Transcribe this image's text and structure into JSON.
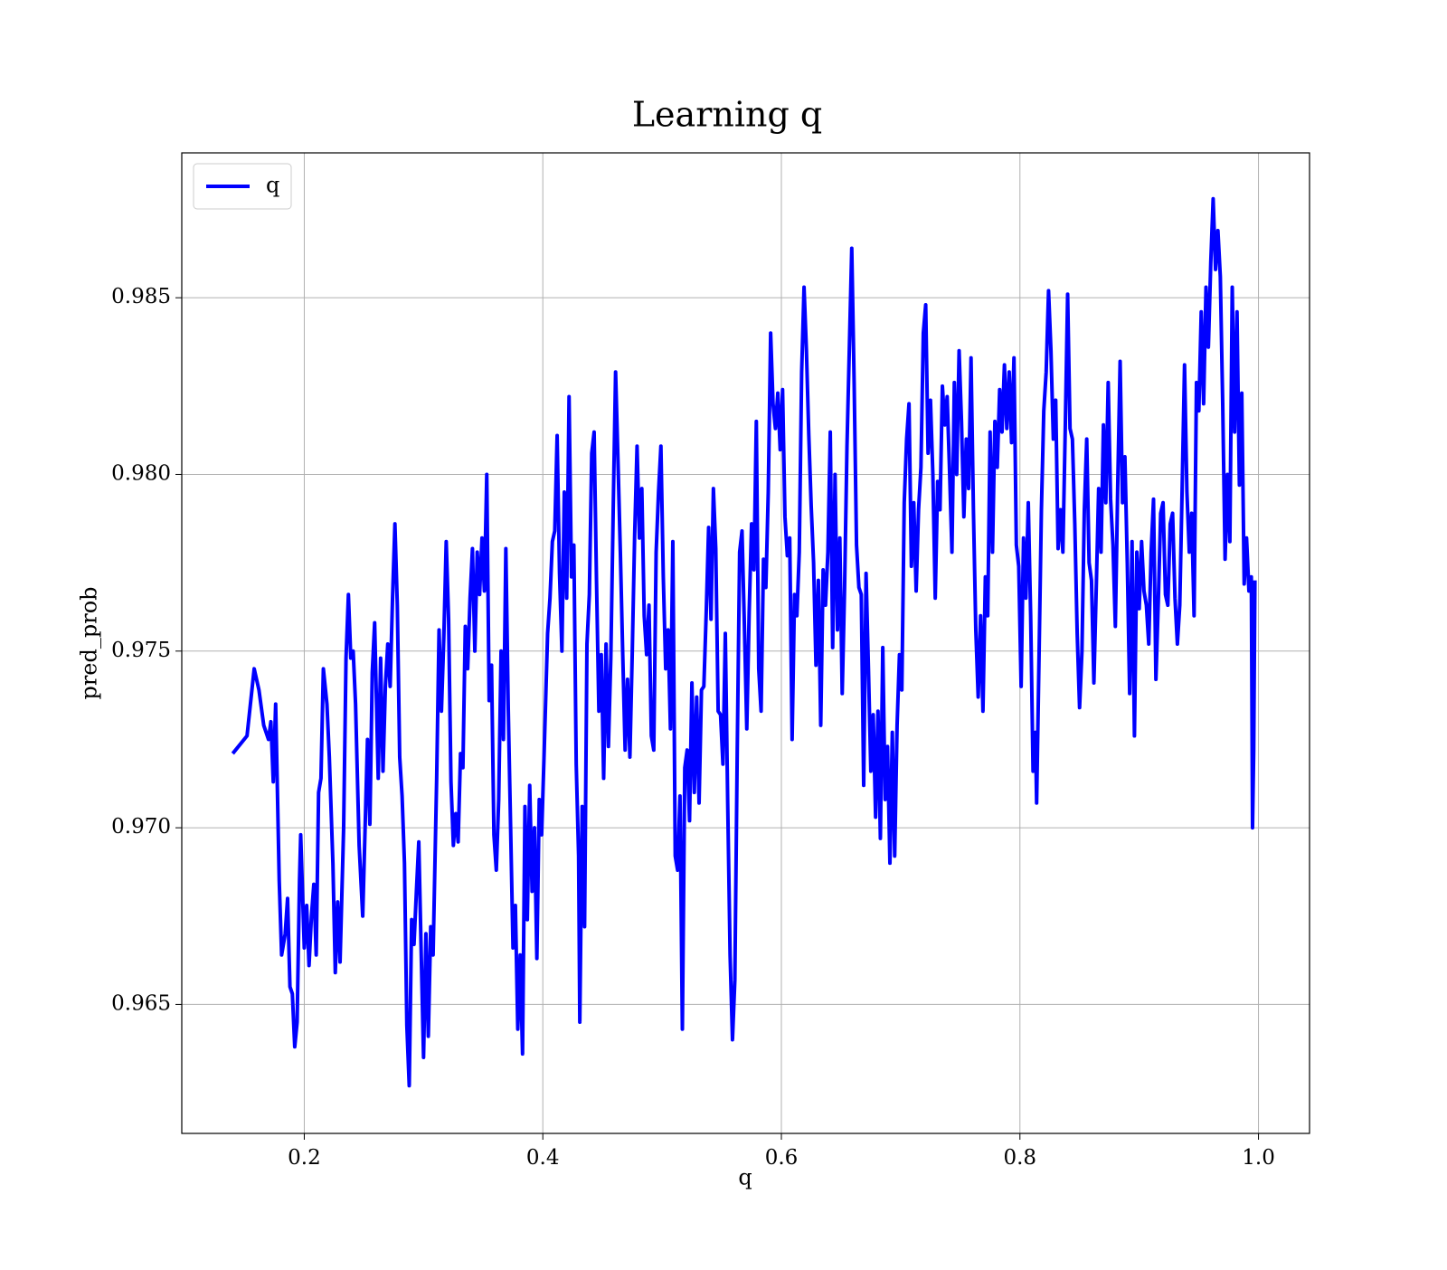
{
  "chart_data": {
    "type": "line",
    "title": "Learning q",
    "xlabel": "q",
    "ylabel": "pred_prob",
    "xlim": [
      0.0973,
      1.0428
    ],
    "ylim": [
      0.96135,
      0.9891
    ],
    "xticks": [
      0.2,
      0.4,
      0.6,
      0.8,
      {
        "value": 1,
        "label": "1.0"
      }
    ],
    "yticks": [
      0.965,
      {
        "value": 0.97,
        "label": "0.970"
      },
      0.975,
      {
        "value": 0.98,
        "label": "0.980"
      },
      0.985
    ],
    "grid": true,
    "legend": "upper left",
    "x": [
      0.14,
      0.152,
      0.158,
      0.162,
      0.166,
      0.17,
      0.172,
      0.174,
      0.176,
      0.179,
      0.181,
      0.184,
      0.186,
      0.188,
      0.19,
      0.192,
      0.194,
      0.196,
      0.197,
      0.2,
      0.202,
      0.204,
      0.206,
      0.208,
      0.21,
      0.212,
      0.214,
      0.216,
      0.219,
      0.221,
      0.224,
      0.226,
      0.228,
      0.23,
      0.233,
      0.235,
      0.237,
      0.239,
      0.241,
      0.243,
      0.246,
      0.249,
      0.251,
      0.253,
      0.255,
      0.257,
      0.259,
      0.262,
      0.264,
      0.266,
      0.268,
      0.27,
      0.272,
      0.274,
      0.276,
      0.278,
      0.28,
      0.282,
      0.284,
      0.286,
      0.288,
      0.29,
      0.292,
      0.294,
      0.296,
      0.298,
      0.3,
      0.302,
      0.304,
      0.306,
      0.308,
      0.311,
      0.313,
      0.315,
      0.317,
      0.319,
      0.321,
      0.323,
      0.325,
      0.327,
      0.329,
      0.331,
      0.333,
      0.335,
      0.337,
      0.339,
      0.341,
      0.343,
      0.345,
      0.347,
      0.349,
      0.351,
      0.353,
      0.355,
      0.357,
      0.359,
      0.361,
      0.363,
      0.365,
      0.367,
      0.369,
      0.371,
      0.373,
      0.375,
      0.377,
      0.379,
      0.381,
      0.383,
      0.385,
      0.387,
      0.389,
      0.391,
      0.393,
      0.395,
      0.397,
      0.399,
      0.401,
      0.404,
      0.406,
      0.408,
      0.41,
      0.412,
      0.414,
      0.416,
      0.418,
      0.42,
      0.422,
      0.424,
      0.426,
      0.428,
      0.43,
      0.431,
      0.433,
      0.435,
      0.437,
      0.439,
      0.441,
      0.443,
      0.445,
      0.447,
      0.449,
      0.451,
      0.453,
      0.455,
      0.457,
      0.459,
      0.461,
      0.463,
      0.465,
      0.467,
      0.469,
      0.471,
      0.473,
      0.475,
      0.477,
      0.479,
      0.481,
      0.483,
      0.485,
      0.487,
      0.489,
      0.491,
      0.493,
      0.495,
      0.497,
      0.499,
      0.501,
      0.503,
      0.505,
      0.507,
      0.509,
      0.511,
      0.513,
      0.515,
      0.517,
      0.519,
      0.521,
      0.523,
      0.525,
      0.527,
      0.529,
      0.531,
      0.533,
      0.535,
      0.537,
      0.539,
      0.541,
      0.543,
      0.545,
      0.547,
      0.549,
      0.551,
      0.553,
      0.555,
      0.557,
      0.559,
      0.561,
      0.563,
      0.565,
      0.567,
      0.569,
      0.571,
      0.573,
      0.575,
      0.577,
      0.579,
      0.581,
      0.583,
      0.585,
      0.587,
      0.589,
      0.591,
      0.593,
      0.595,
      0.597,
      0.599,
      0.601,
      0.603,
      0.605,
      0.607,
      0.609,
      0.611,
      0.613,
      0.615,
      0.617,
      0.619,
      0.621,
      0.623,
      0.625,
      0.627,
      0.629,
      0.631,
      0.633,
      0.635,
      0.637,
      0.639,
      0.641,
      0.643,
      0.645,
      0.647,
      0.649,
      0.651,
      0.653,
      0.655,
      0.657,
      0.659,
      0.661,
      0.663,
      0.665,
      0.667,
      0.669,
      0.671,
      0.673,
      0.675,
      0.677,
      0.679,
      0.681,
      0.683,
      0.685,
      0.687,
      0.689,
      0.691,
      0.693,
      0.695,
      0.697,
      0.699,
      0.701,
      0.703,
      0.705,
      0.707,
      0.709,
      0.711,
      0.713,
      0.715,
      0.717,
      0.719,
      0.721,
      0.723,
      0.725,
      0.727,
      0.729,
      0.731,
      0.733,
      0.735,
      0.737,
      0.739,
      0.741,
      0.743,
      0.745,
      0.747,
      0.749,
      0.751,
      0.753,
      0.755,
      0.757,
      0.759,
      0.761,
      0.763,
      0.765,
      0.767,
      0.769,
      0.771,
      0.773,
      0.775,
      0.777,
      0.779,
      0.781,
      0.783,
      0.785,
      0.787,
      0.789,
      0.791,
      0.793,
      0.795,
      0.797,
      0.799,
      0.801,
      0.803,
      0.805,
      0.807,
      0.809,
      0.811,
      0.813,
      0.814,
      0.816,
      0.818,
      0.82,
      0.822,
      0.824,
      0.826,
      0.828,
      0.83,
      0.832,
      0.834,
      0.836,
      0.838,
      0.84,
      0.842,
      0.844,
      0.846,
      0.848,
      0.85,
      0.852,
      0.854,
      0.856,
      0.858,
      0.86,
      0.862,
      0.864,
      0.866,
      0.868,
      0.87,
      0.872,
      0.874,
      0.876,
      0.878,
      0.88,
      0.882,
      0.884,
      0.886,
      0.888,
      0.89,
      0.892,
      0.894,
      0.896,
      0.898,
      0.9,
      0.902,
      0.904,
      0.906,
      0.908,
      0.91,
      0.912,
      0.914,
      0.916,
      0.918,
      0.92,
      0.922,
      0.924,
      0.926,
      0.928,
      0.93,
      0.932,
      0.934,
      0.936,
      0.938,
      0.94,
      0.942,
      0.944,
      0.946,
      0.948,
      0.95,
      0.952,
      0.954,
      0.956,
      0.958,
      0.96,
      0.962,
      0.964,
      0.966,
      0.968,
      0.97,
      0.972,
      0.974,
      0.976,
      0.978,
      0.98,
      0.982,
      0.984,
      0.986,
      0.988,
      0.99,
      0.992,
      0.994,
      0.995,
      0.996,
      0.997
    ],
    "series": [
      {
        "name": "q",
        "color": "#0000ff",
        "values": [
          0.9721,
          0.9726,
          0.9745,
          0.9739,
          0.9729,
          0.9725,
          0.973,
          0.9713,
          0.9735,
          0.9685,
          0.9664,
          0.967,
          0.968,
          0.9655,
          0.9653,
          0.9638,
          0.9645,
          0.9685,
          0.9698,
          0.9666,
          0.9678,
          0.9661,
          0.9675,
          0.9684,
          0.9664,
          0.971,
          0.9714,
          0.9745,
          0.9735,
          0.972,
          0.969,
          0.9659,
          0.9679,
          0.9662,
          0.97,
          0.9748,
          0.9766,
          0.9748,
          0.975,
          0.9735,
          0.9695,
          0.9675,
          0.97,
          0.9725,
          0.9701,
          0.9744,
          0.9758,
          0.9714,
          0.9748,
          0.9716,
          0.974,
          0.9752,
          0.974,
          0.9765,
          0.9786,
          0.9763,
          0.972,
          0.9709,
          0.969,
          0.9644,
          0.9627,
          0.9674,
          0.9667,
          0.9682,
          0.9696,
          0.9665,
          0.9635,
          0.967,
          0.9641,
          0.9672,
          0.9664,
          0.9714,
          0.9756,
          0.9733,
          0.9754,
          0.9781,
          0.9759,
          0.9713,
          0.9695,
          0.9704,
          0.9696,
          0.9721,
          0.9717,
          0.9757,
          0.9745,
          0.9765,
          0.9779,
          0.975,
          0.9778,
          0.9766,
          0.9782,
          0.9767,
          0.98,
          0.9736,
          0.9746,
          0.9698,
          0.9688,
          0.9708,
          0.975,
          0.9725,
          0.9779,
          0.9734,
          0.97,
          0.9666,
          0.9678,
          0.9643,
          0.9664,
          0.9636,
          0.9706,
          0.9674,
          0.9712,
          0.9682,
          0.97,
          0.9663,
          0.9708,
          0.9698,
          0.972,
          0.9755,
          0.9765,
          0.9781,
          0.9784,
          0.9811,
          0.9772,
          0.975,
          0.9795,
          0.9765,
          0.9822,
          0.9771,
          0.978,
          0.9718,
          0.9692,
          0.9645,
          0.9706,
          0.9672,
          0.9752,
          0.9766,
          0.9806,
          0.9812,
          0.977,
          0.9733,
          0.9749,
          0.9714,
          0.9752,
          0.9723,
          0.9748,
          0.979,
          0.9829,
          0.9804,
          0.9778,
          0.9749,
          0.9722,
          0.9742,
          0.972,
          0.975,
          0.9783,
          0.9808,
          0.9782,
          0.9796,
          0.976,
          0.9749,
          0.9763,
          0.9726,
          0.9722,
          0.9778,
          0.9795,
          0.9808,
          0.9771,
          0.9745,
          0.9756,
          0.9728,
          0.9781,
          0.9692,
          0.9688,
          0.9709,
          0.9643,
          0.9717,
          0.9722,
          0.9702,
          0.9741,
          0.971,
          0.9737,
          0.9707,
          0.9739,
          0.974,
          0.9761,
          0.9785,
          0.9759,
          0.9796,
          0.9779,
          0.9733,
          0.9732,
          0.9718,
          0.9755,
          0.9707,
          0.9664,
          0.964,
          0.9657,
          0.9722,
          0.9778,
          0.9784,
          0.9757,
          0.9728,
          0.9761,
          0.9786,
          0.9773,
          0.9815,
          0.9745,
          0.9733,
          0.9776,
          0.9768,
          0.9795,
          0.984,
          0.982,
          0.9813,
          0.9823,
          0.9807,
          0.9824,
          0.9788,
          0.9777,
          0.9782,
          0.9725,
          0.9766,
          0.976,
          0.9778,
          0.9829,
          0.9853,
          0.9835,
          0.9811,
          0.9791,
          0.9775,
          0.9746,
          0.977,
          0.9729,
          0.9773,
          0.9763,
          0.9778,
          0.9812,
          0.9751,
          0.98,
          0.9756,
          0.9782,
          0.9738,
          0.9768,
          0.9808,
          0.9836,
          0.9864,
          0.9826,
          0.978,
          0.9768,
          0.9766,
          0.9712,
          0.9772,
          0.9745,
          0.9716,
          0.9732,
          0.9703,
          0.9733,
          0.9697,
          0.9751,
          0.9708,
          0.9723,
          0.969,
          0.9727,
          0.9692,
          0.9729,
          0.9749,
          0.9739,
          0.9792,
          0.981,
          0.982,
          0.9774,
          0.9792,
          0.9767,
          0.979,
          0.9802,
          0.984,
          0.9848,
          0.9806,
          0.9821,
          0.98,
          0.9765,
          0.9798,
          0.979,
          0.9825,
          0.9814,
          0.9822,
          0.9801,
          0.9778,
          0.9826,
          0.98,
          0.9835,
          0.9815,
          0.9788,
          0.981,
          0.9796,
          0.9833,
          0.979,
          0.9756,
          0.9737,
          0.976,
          0.9733,
          0.9771,
          0.976,
          0.9812,
          0.9778,
          0.9815,
          0.9802,
          0.9824,
          0.9812,
          0.9831,
          0.9813,
          0.9829,
          0.9809,
          0.9833,
          0.978,
          0.9774,
          0.974,
          0.9782,
          0.9765,
          0.9792,
          0.976,
          0.9716,
          0.9727,
          0.9707,
          0.9748,
          0.979,
          0.9818,
          0.9829,
          0.9852,
          0.9835,
          0.981,
          0.9821,
          0.9779,
          0.979,
          0.9778,
          0.9813,
          0.9851,
          0.9813,
          0.981,
          0.9786,
          0.9755,
          0.9734,
          0.975,
          0.979,
          0.981,
          0.9775,
          0.977,
          0.9741,
          0.9768,
          0.9796,
          0.9778,
          0.9814,
          0.9792,
          0.9826,
          0.9793,
          0.978,
          0.9757,
          0.9797,
          0.9832,
          0.9792,
          0.9805,
          0.9775,
          0.9738,
          0.9781,
          0.9726,
          0.9778,
          0.9762,
          0.9781,
          0.9767,
          0.9763,
          0.9752,
          0.9778,
          0.9793,
          0.9742,
          0.9764,
          0.9789,
          0.9792,
          0.9766,
          0.9763,
          0.9786,
          0.9789,
          0.9765,
          0.9752,
          0.9763,
          0.9796,
          0.9831,
          0.9795,
          0.9778,
          0.9789,
          0.976,
          0.9826,
          0.9818,
          0.9846,
          0.982,
          0.9853,
          0.9836,
          0.986,
          0.9878,
          0.9858,
          0.9869,
          0.9856,
          0.982,
          0.9776,
          0.98,
          0.9781,
          0.9853,
          0.9812,
          0.9846,
          0.9797,
          0.9823,
          0.9769,
          0.9782,
          0.9767,
          0.9771,
          0.97,
          0.9722,
          0.977
        ]
      }
    ]
  }
}
